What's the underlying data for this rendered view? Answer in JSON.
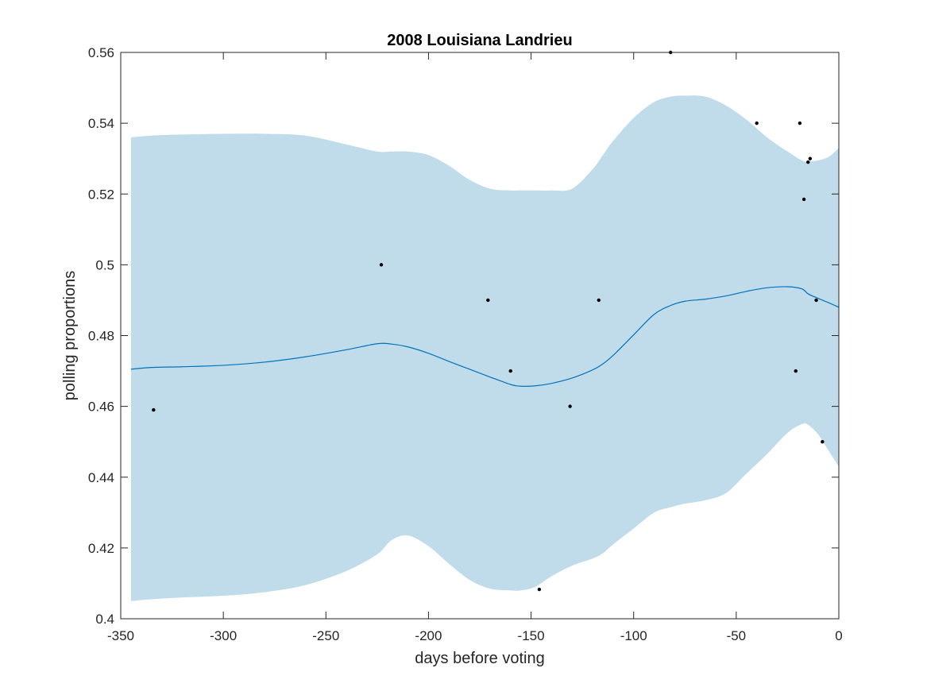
{
  "chart_data": {
    "type": "line",
    "title": "2008 Louisiana Landrieu",
    "xlabel": "days before voting",
    "ylabel": "polling proportions",
    "xlim": [
      -350,
      0
    ],
    "ylim": [
      0.4,
      0.56
    ],
    "xticks": [
      -350,
      -300,
      -250,
      -200,
      -150,
      -100,
      -50,
      0
    ],
    "xtick_labels": [
      "-350",
      "-300",
      "-250",
      "-200",
      "-150",
      "-100",
      "-50",
      "0"
    ],
    "yticks": [
      0.4,
      0.42,
      0.44,
      0.46,
      0.48,
      0.5,
      0.52,
      0.54,
      0.56
    ],
    "ytick_labels": [
      "0.4",
      "0.42",
      "0.44",
      "0.46",
      "0.48",
      "0.5",
      "0.52",
      "0.54",
      "0.56"
    ],
    "grid": false,
    "colors": {
      "band": "#c0dcea",
      "line": "#0072bd",
      "points": "#000000",
      "axes": "#262626"
    },
    "mean_line": {
      "x": [
        -345,
        -335,
        -320,
        -300,
        -280,
        -260,
        -240,
        -225,
        -218,
        -210,
        -200,
        -190,
        -180,
        -170,
        -160,
        -155,
        -148,
        -140,
        -130,
        -120,
        -115,
        -110,
        -100,
        -90,
        -82,
        -75,
        -65,
        -55,
        -45,
        -35,
        -25,
        -18,
        -15,
        -10,
        -5,
        0
      ],
      "y": [
        0.4705,
        0.471,
        0.4712,
        0.4716,
        0.4725,
        0.474,
        0.476,
        0.4777,
        0.4776,
        0.4768,
        0.475,
        0.4727,
        0.4705,
        0.4683,
        0.4662,
        0.4657,
        0.4658,
        0.4665,
        0.468,
        0.4703,
        0.472,
        0.4744,
        0.4802,
        0.486,
        0.4885,
        0.4897,
        0.4903,
        0.4912,
        0.4925,
        0.4935,
        0.4938,
        0.4932,
        0.4918,
        0.4905,
        0.4893,
        0.488
      ]
    },
    "confidence_band": {
      "x": [
        -345,
        -335,
        -320,
        -300,
        -280,
        -260,
        -240,
        -225,
        -218,
        -210,
        -200,
        -190,
        -180,
        -170,
        -160,
        -155,
        -148,
        -140,
        -130,
        -120,
        -115,
        -110,
        -100,
        -90,
        -82,
        -75,
        -65,
        -55,
        -45,
        -35,
        -25,
        -18,
        -15,
        -10,
        -5,
        0
      ],
      "upper": [
        0.536,
        0.5365,
        0.5368,
        0.537,
        0.537,
        0.5365,
        0.534,
        0.532,
        0.532,
        0.532,
        0.531,
        0.528,
        0.524,
        0.5215,
        0.521,
        0.521,
        0.521,
        0.521,
        0.5215,
        0.527,
        0.531,
        0.535,
        0.5415,
        0.546,
        0.5475,
        0.5478,
        0.5475,
        0.545,
        0.541,
        0.536,
        0.532,
        0.5295,
        0.5292,
        0.5295,
        0.5305,
        0.533
      ],
      "lower": [
        0.405,
        0.4055,
        0.406,
        0.4065,
        0.4075,
        0.4095,
        0.4135,
        0.4182,
        0.4222,
        0.4235,
        0.4205,
        0.4155,
        0.411,
        0.4085,
        0.408,
        0.408,
        0.409,
        0.412,
        0.415,
        0.417,
        0.4185,
        0.421,
        0.4255,
        0.43,
        0.4315,
        0.4325,
        0.4335,
        0.4355,
        0.441,
        0.4465,
        0.4525,
        0.455,
        0.4548,
        0.452,
        0.4475,
        0.443
      ]
    },
    "points": {
      "x": [
        -334,
        -223,
        -171,
        -160,
        -146,
        -131,
        -117,
        -82,
        -40,
        -21,
        -19,
        -17,
        -15,
        -14,
        -11,
        -8
      ],
      "y": [
        0.459,
        0.5,
        0.49,
        0.47,
        0.4083,
        0.46,
        0.49,
        0.56,
        0.54,
        0.47,
        0.54,
        0.5185,
        0.529,
        0.53,
        0.49,
        0.45
      ]
    }
  }
}
